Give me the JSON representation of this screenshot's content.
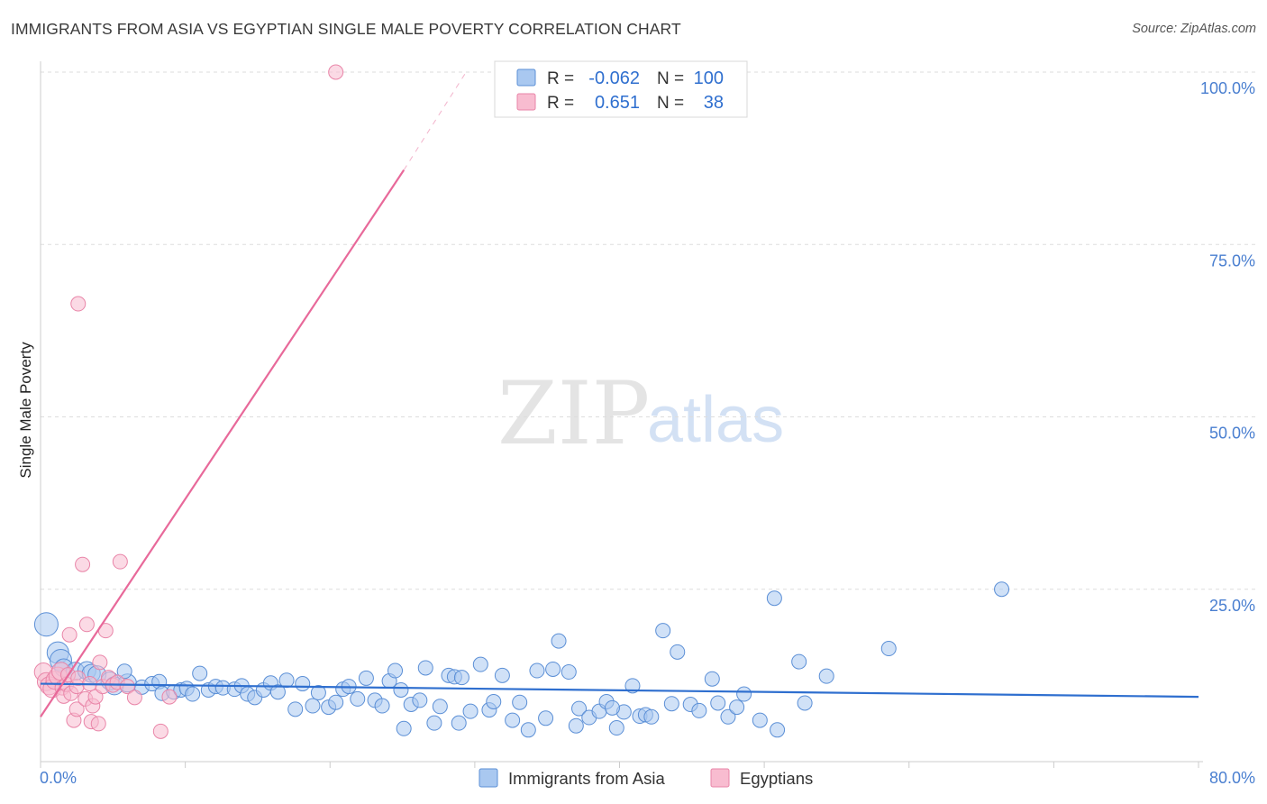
{
  "header": {
    "title": "IMMIGRANTS FROM ASIA VS EGYPTIAN SINGLE MALE POVERTY CORRELATION CHART",
    "source": "Source: ZipAtlas.com"
  },
  "watermark": {
    "zip": "ZIP",
    "atlas": "atlas"
  },
  "legend_box": {
    "rows": [
      {
        "r_label": "R =",
        "r_value": "-0.062",
        "n_label": "N =",
        "n_value": "100",
        "color": "#a9c8f0",
        "stroke": "#5b8fd6"
      },
      {
        "r_label": "R =",
        "r_value": "0.651",
        "n_label": "N =",
        "n_value": "38",
        "color": "#f8bcd0",
        "stroke": "#e985a8"
      }
    ]
  },
  "bottom_legend": {
    "items": [
      {
        "label": "Immigrants from Asia",
        "color": "#a9c8f0",
        "stroke": "#5b8fd6"
      },
      {
        "label": "Egyptians",
        "color": "#f8bcd0",
        "stroke": "#e985a8"
      }
    ]
  },
  "chart_data": {
    "type": "scatter",
    "title": "IMMIGRANTS FROM ASIA VS EGYPTIAN SINGLE MALE POVERTY CORRELATION CHART",
    "xlabel": "",
    "ylabel": "Single Male Poverty",
    "xlim": [
      0,
      80
    ],
    "ylim": [
      0,
      100
    ],
    "x_tick_labels": [
      "0.0%",
      "80.0%"
    ],
    "y_tick_labels": [
      "100.0%",
      "75.0%",
      "50.0%",
      "25.0%"
    ],
    "y_tick_values": [
      100,
      75,
      50,
      25
    ],
    "grid": true,
    "series": [
      {
        "name": "Immigrants from Asia",
        "color": "#a9c8f0",
        "stroke": "#5b8fd6",
        "trend": {
          "x": [
            0,
            80
          ],
          "y": [
            11.3,
            9.4
          ],
          "color": "#2f6fcf"
        },
        "points": [
          [
            0.4,
            19.9,
            4
          ],
          [
            1.2,
            15.8,
            3
          ],
          [
            1.4,
            14.7,
            3
          ],
          [
            1.6,
            13.6,
            2
          ],
          [
            2.4,
            13.1,
            2
          ],
          [
            3.2,
            13.2,
            2
          ],
          [
            3.5,
            12.8,
            2
          ],
          [
            3.9,
            12.6,
            2
          ],
          [
            4.8,
            11.7,
            2
          ],
          [
            5.1,
            11.0,
            2
          ],
          [
            6.0,
            11.4,
            2
          ],
          [
            5.8,
            13.1,
            1
          ],
          [
            7.0,
            10.8,
            1
          ],
          [
            7.7,
            11.3,
            1
          ],
          [
            8.2,
            11.6,
            1
          ],
          [
            8.4,
            9.9,
            1
          ],
          [
            9.2,
            10.1,
            1
          ],
          [
            9.7,
            10.4,
            1
          ],
          [
            10.1,
            10.6,
            1
          ],
          [
            10.5,
            9.8,
            1
          ],
          [
            11.0,
            12.8,
            1
          ],
          [
            11.6,
            10.4,
            1
          ],
          [
            12.1,
            10.9,
            1
          ],
          [
            12.6,
            10.7,
            1
          ],
          [
            13.4,
            10.5,
            1
          ],
          [
            13.9,
            11.0,
            1
          ],
          [
            14.3,
            9.8,
            1
          ],
          [
            14.8,
            9.3,
            1
          ],
          [
            15.4,
            10.4,
            1
          ],
          [
            15.9,
            11.4,
            1
          ],
          [
            16.4,
            10.1,
            1
          ],
          [
            17.0,
            11.8,
            1
          ],
          [
            17.6,
            7.6,
            1
          ],
          [
            18.1,
            11.3,
            1
          ],
          [
            18.8,
            8.1,
            1
          ],
          [
            19.2,
            10.0,
            1
          ],
          [
            19.9,
            7.9,
            1
          ],
          [
            20.4,
            8.6,
            1
          ],
          [
            20.9,
            10.5,
            1
          ],
          [
            21.3,
            10.9,
            1
          ],
          [
            21.9,
            9.1,
            1
          ],
          [
            22.5,
            12.1,
            1
          ],
          [
            23.1,
            8.9,
            1
          ],
          [
            23.6,
            8.1,
            1
          ],
          [
            24.1,
            11.7,
            1
          ],
          [
            24.5,
            13.2,
            1
          ],
          [
            24.9,
            10.4,
            1
          ],
          [
            25.1,
            4.8,
            1
          ],
          [
            25.6,
            8.3,
            1
          ],
          [
            26.2,
            8.9,
            1
          ],
          [
            26.6,
            13.6,
            1
          ],
          [
            27.2,
            5.6,
            1
          ],
          [
            27.6,
            8.0,
            1
          ],
          [
            28.2,
            12.5,
            1
          ],
          [
            28.6,
            12.3,
            1
          ],
          [
            29.1,
            12.2,
            1
          ],
          [
            28.9,
            5.6,
            1
          ],
          [
            29.7,
            7.3,
            1
          ],
          [
            30.4,
            14.1,
            1
          ],
          [
            31.0,
            7.5,
            1
          ],
          [
            31.3,
            8.7,
            1
          ],
          [
            31.9,
            12.5,
            1
          ],
          [
            32.6,
            6.0,
            1
          ],
          [
            33.1,
            8.6,
            1
          ],
          [
            33.7,
            4.6,
            1
          ],
          [
            34.3,
            13.2,
            1
          ],
          [
            34.9,
            6.3,
            1
          ],
          [
            35.4,
            13.4,
            1
          ],
          [
            35.8,
            17.5,
            1
          ],
          [
            36.5,
            13.0,
            1
          ],
          [
            37.2,
            7.7,
            1
          ],
          [
            37.9,
            6.4,
            1
          ],
          [
            38.6,
            7.3,
            1
          ],
          [
            39.1,
            8.7,
            1
          ],
          [
            39.8,
            4.9,
            1
          ],
          [
            40.3,
            7.2,
            1
          ],
          [
            40.9,
            11.0,
            1
          ],
          [
            41.4,
            6.6,
            1
          ],
          [
            41.8,
            6.8,
            1
          ],
          [
            43.0,
            19.0,
            1
          ],
          [
            43.6,
            8.4,
            1
          ],
          [
            44.0,
            15.9,
            1
          ],
          [
            44.9,
            8.3,
            1
          ],
          [
            45.5,
            7.4,
            1
          ],
          [
            46.4,
            12.0,
            1
          ],
          [
            46.8,
            8.5,
            1
          ],
          [
            47.5,
            6.5,
            1
          ],
          [
            48.1,
            7.9,
            1
          ],
          [
            48.6,
            9.8,
            1
          ],
          [
            49.7,
            6.0,
            1
          ],
          [
            50.7,
            23.7,
            1
          ],
          [
            50.9,
            4.6,
            1
          ],
          [
            52.4,
            14.5,
            1
          ],
          [
            52.8,
            8.5,
            1
          ],
          [
            54.3,
            12.4,
            1
          ],
          [
            58.6,
            16.4,
            1
          ],
          [
            37.0,
            5.2,
            1
          ],
          [
            39.5,
            7.8,
            1
          ],
          [
            42.2,
            6.5,
            1
          ],
          [
            66.4,
            25.0,
            1
          ]
        ]
      },
      {
        "name": "Egyptians",
        "color": "#f8bcd0",
        "stroke": "#e985a8",
        "trend": {
          "x": [
            0,
            25.1
          ],
          "y": [
            6.5,
            85.8
          ],
          "dash_to": [
            29.4,
            100
          ],
          "color": "#e8699a"
        },
        "points": [
          [
            0.2,
            13.0,
            2
          ],
          [
            0.4,
            11.6,
            2
          ],
          [
            0.6,
            11.0,
            2
          ],
          [
            0.8,
            10.6,
            2
          ],
          [
            1.0,
            11.8,
            2
          ],
          [
            1.2,
            12.4,
            2
          ],
          [
            1.4,
            13.1,
            2
          ],
          [
            1.5,
            10.7,
            1
          ],
          [
            1.6,
            9.5,
            1
          ],
          [
            1.8,
            11.2,
            1
          ],
          [
            1.9,
            12.6,
            1
          ],
          [
            2.0,
            18.4,
            1
          ],
          [
            2.1,
            9.9,
            1
          ],
          [
            2.3,
            6.0,
            1
          ],
          [
            2.5,
            7.6,
            1
          ],
          [
            2.5,
            10.9,
            1
          ],
          [
            2.6,
            12.1,
            1
          ],
          [
            2.9,
            28.6,
            1
          ],
          [
            3.1,
            9.1,
            1
          ],
          [
            3.2,
            19.9,
            1
          ],
          [
            3.4,
            11.3,
            1
          ],
          [
            3.5,
            5.8,
            1
          ],
          [
            3.6,
            8.1,
            1
          ],
          [
            3.8,
            9.4,
            1
          ],
          [
            4.0,
            5.5,
            1
          ],
          [
            4.1,
            14.4,
            1
          ],
          [
            4.3,
            10.9,
            1
          ],
          [
            4.5,
            19.0,
            1
          ],
          [
            4.7,
            12.2,
            1
          ],
          [
            5.0,
            11.1,
            1
          ],
          [
            5.3,
            11.5,
            1
          ],
          [
            5.5,
            29.0,
            1
          ],
          [
            6.0,
            10.9,
            1
          ],
          [
            6.5,
            9.3,
            1
          ],
          [
            8.3,
            4.4,
            1
          ],
          [
            8.9,
            9.4,
            1
          ],
          [
            2.6,
            66.4,
            1
          ],
          [
            20.4,
            100.0,
            1
          ]
        ]
      }
    ]
  }
}
